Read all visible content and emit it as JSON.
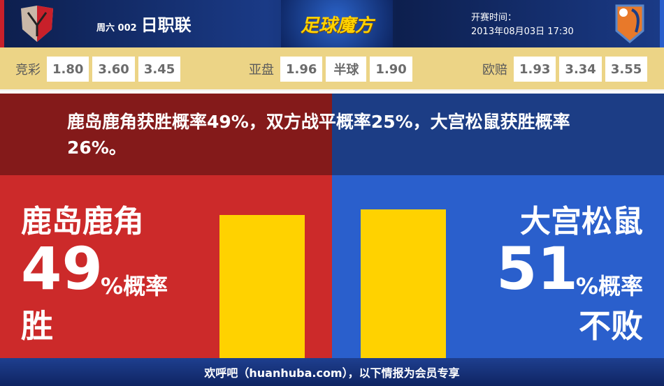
{
  "header": {
    "week": "周六 002",
    "league": "日职联",
    "brand": "足球魔方",
    "time_label": "开赛时间：",
    "time_value": "2013年08月03日 17:30"
  },
  "odds": {
    "jingcai": {
      "label": "竞彩",
      "values": [
        "1.80",
        "3.60",
        "3.45"
      ]
    },
    "yapan": {
      "label": "亚盘",
      "values": [
        "1.96",
        "半球",
        "1.90"
      ]
    },
    "oupei": {
      "label": "欧赔",
      "values": [
        "1.93",
        "3.34",
        "3.55"
      ]
    }
  },
  "summary": "鹿岛鹿角获胜概率49%，双方战平概率25%，大宫松鼠获胜概率26%。",
  "home": {
    "name": "鹿岛鹿角",
    "pct": "49",
    "unit": "%概率",
    "result": "胜",
    "value": 49,
    "color": "#cc2a2a"
  },
  "away": {
    "name": "大宫松鼠",
    "pct": "51",
    "unit": "%概率",
    "result": "不败",
    "value": 51,
    "color": "#2a5fcc"
  },
  "footer": "欢呼吧（huanhuba.com），以下情报为会员专享"
}
